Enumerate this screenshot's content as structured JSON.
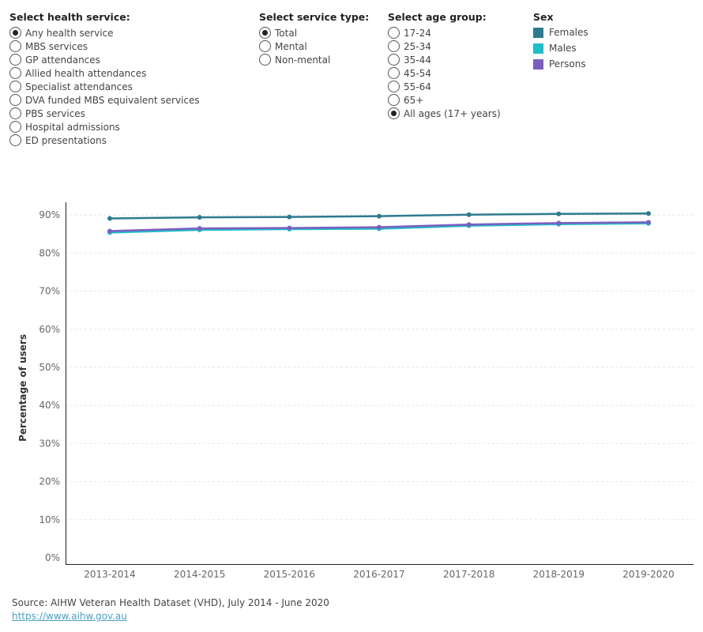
{
  "filters": {
    "health_service": {
      "title": "Select health service:",
      "options": [
        "Any health service",
        "MBS services",
        "GP attendances",
        "Allied health attendances",
        "Specialist attendances",
        "DVA funded MBS equivalent services",
        "PBS services",
        "Hospital admissions",
        "ED presentations"
      ],
      "selected": 0
    },
    "service_type": {
      "title": "Select service type:",
      "options": [
        "Total",
        "Mental",
        "Non-mental"
      ],
      "selected": 0
    },
    "age_group": {
      "title": "Select age group:",
      "options": [
        "17-24",
        "25-34",
        "35-44",
        "45-54",
        "55-64",
        "65+",
        "All ages (17+ years)"
      ],
      "selected": 6
    }
  },
  "legend": {
    "title": "Sex",
    "items": [
      {
        "label": "Females",
        "color": "#2e7a8f"
      },
      {
        "label": "Males",
        "color": "#1fbdc8"
      },
      {
        "label": "Persons",
        "color": "#7b5fbf"
      }
    ]
  },
  "chart_data": {
    "type": "line",
    "ylabel": "Percentage of users",
    "xlabel": "",
    "ylim": [
      0,
      95
    ],
    "yticks": [
      0,
      10,
      20,
      30,
      40,
      50,
      60,
      70,
      80,
      90
    ],
    "ytick_labels": [
      "0%",
      "10%",
      "20%",
      "30%",
      "40%",
      "50%",
      "60%",
      "70%",
      "80%",
      "90%"
    ],
    "grid": true,
    "categories": [
      "2013-2014",
      "2014-2015",
      "2015-2016",
      "2016-2017",
      "2017-2018",
      "2018-2019",
      "2019-2020"
    ],
    "series": [
      {
        "name": "Males",
        "color": "#1fbdc8",
        "values": [
          85.4,
          86.1,
          86.3,
          86.4,
          87.2,
          87.6,
          87.8
        ]
      },
      {
        "name": "Persons",
        "color": "#7b5fbf",
        "values": [
          85.8,
          86.5,
          86.6,
          86.8,
          87.5,
          87.9,
          88.1
        ]
      },
      {
        "name": "Females",
        "color": "#2e7a8f",
        "values": [
          89.1,
          89.4,
          89.5,
          89.7,
          90.1,
          90.3,
          90.4
        ]
      }
    ]
  },
  "source": {
    "text": "Source: AIHW Veteran Health Dataset (VHD), July 2014 - June 2020",
    "link": "https://www.aihw.gov.au"
  }
}
